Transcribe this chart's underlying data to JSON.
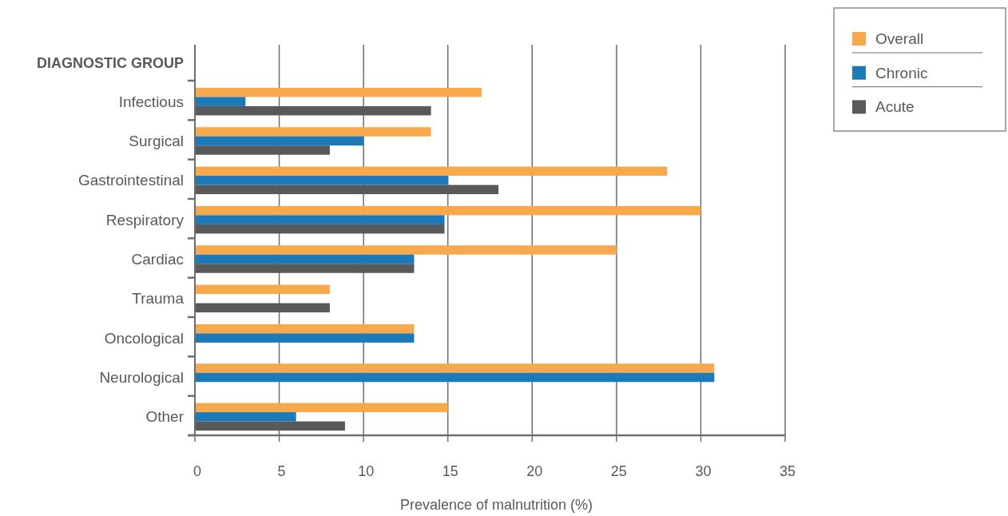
{
  "chart_data": {
    "type": "bar",
    "orientation": "horizontal",
    "ylabel": "DIAGNOSTIC GROUP",
    "xlabel": "Prevalence of malnutrition (%)",
    "categories": [
      "Infectious",
      "Surgical",
      "Gastrointestinal",
      "Respiratory",
      "Cardiac",
      "Trauma",
      "Oncological",
      "Neurological",
      "Other"
    ],
    "series": [
      {
        "name": "Overall",
        "color": "#f8a94b",
        "values": [
          17,
          14,
          28,
          30,
          25,
          8,
          13,
          30.8,
          15
        ]
      },
      {
        "name": "Chronic",
        "color": "#1c7ab8",
        "values": [
          3,
          10,
          15,
          14.8,
          13,
          null,
          13,
          30.8,
          6
        ]
      },
      {
        "name": "Acute",
        "color": "#58595b",
        "values": [
          14,
          8,
          18,
          14.8,
          13,
          8,
          null,
          null,
          8.9
        ]
      }
    ],
    "xlim": [
      0,
      35
    ],
    "xticks": [
      0,
      5,
      10,
      15,
      20,
      25,
      30,
      35
    ],
    "grid": "x",
    "legend": "top right"
  }
}
